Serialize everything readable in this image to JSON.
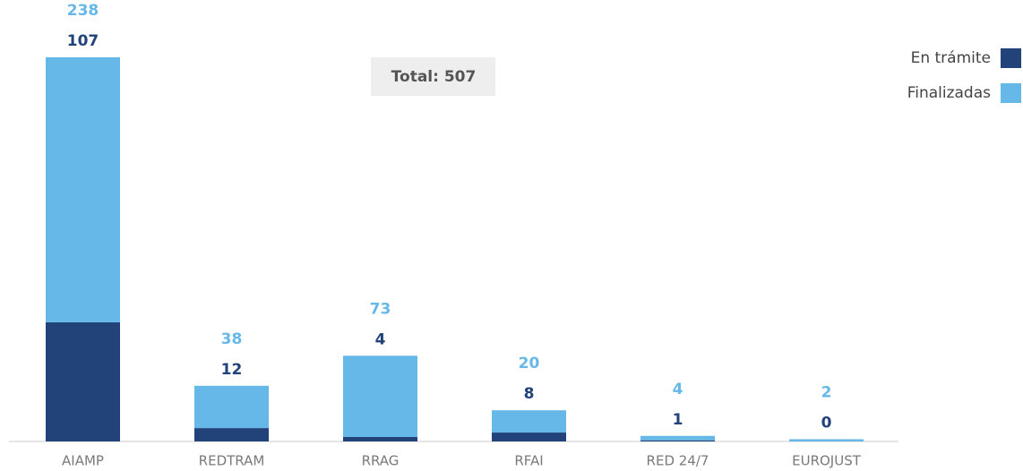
{
  "chart_data": {
    "type": "stacked_bar",
    "annotation": "Total: 507",
    "categories": [
      "AIAMP",
      "REDTRAM",
      "RRAG",
      "RFAI",
      "RED 24/7",
      "EUROJUST"
    ],
    "series": [
      {
        "name": "En trámite",
        "color": "#22427a",
        "values": [
          107,
          12,
          4,
          8,
          1,
          0
        ]
      },
      {
        "name": "Finalizadas",
        "color": "#66b8e8",
        "values": [
          238,
          38,
          73,
          20,
          4,
          2
        ]
      }
    ],
    "legend": "top-right"
  }
}
